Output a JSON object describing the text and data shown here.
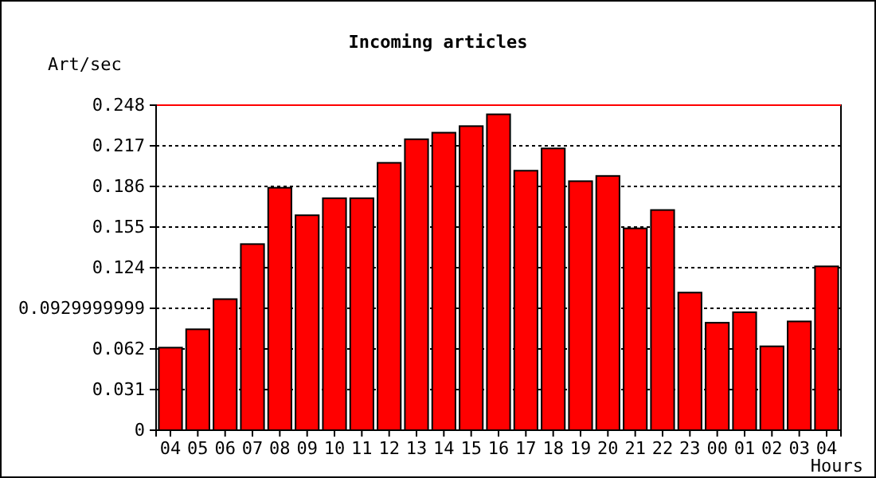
{
  "chart_data": {
    "type": "bar",
    "title": "Incoming articles",
    "xlabel": "Hours",
    "ylabel": "Art/sec",
    "categories": [
      "04",
      "05",
      "06",
      "07",
      "08",
      "09",
      "10",
      "11",
      "12",
      "13",
      "14",
      "15",
      "16",
      "17",
      "18",
      "19",
      "20",
      "21",
      "22",
      "23",
      "00",
      "01",
      "02",
      "03",
      "04"
    ],
    "values": [
      0.063,
      0.077,
      0.1,
      0.142,
      0.185,
      0.164,
      0.177,
      0.177,
      0.204,
      0.222,
      0.227,
      0.232,
      0.241,
      0.198,
      0.215,
      0.19,
      0.194,
      0.154,
      0.168,
      0.105,
      0.082,
      0.09,
      0.064,
      0.083,
      0.125
    ],
    "color": "#ff0000",
    "ylim": [
      0,
      0.248
    ],
    "yticks": [
      0,
      0.031,
      0.062,
      0.0929999999,
      0.124,
      0.155,
      0.186,
      0.217,
      0.248
    ],
    "grid": "y",
    "line_style": "dotted",
    "ref_lines": [
      {
        "axis": "y",
        "value": 0.248,
        "color": "#ff0000"
      }
    ]
  }
}
